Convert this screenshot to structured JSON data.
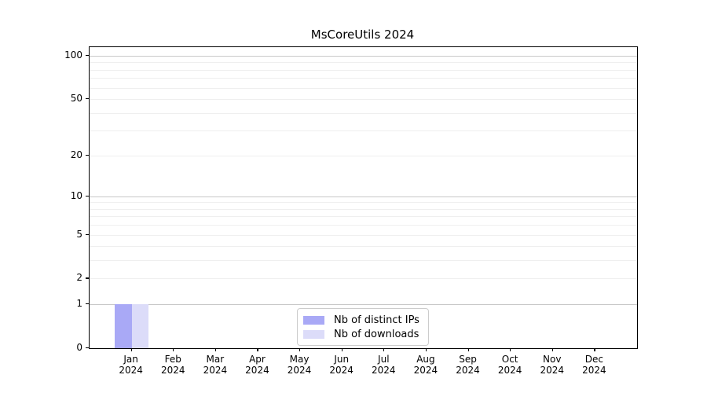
{
  "figure": {
    "background": "#ffffff"
  },
  "chart_data": {
    "type": "bar",
    "title": "MsCoreUtils 2024",
    "x_axis": {
      "months": [
        "Jan",
        "Feb",
        "Mar",
        "Apr",
        "May",
        "Jun",
        "Jul",
        "Aug",
        "Sep",
        "Oct",
        "Nov",
        "Dec"
      ],
      "year": "2024"
    },
    "y_axis": {
      "scale": "log1p",
      "tick_values": [
        0,
        1,
        2,
        5,
        10,
        20,
        50,
        100
      ],
      "major_grid_values": [
        1,
        10,
        100
      ],
      "minor_grid_values": [
        2,
        3,
        4,
        5,
        6,
        7,
        8,
        9,
        20,
        30,
        40,
        50,
        60,
        70,
        80,
        90
      ],
      "ylim": [
        0,
        100
      ]
    },
    "series": [
      {
        "name": "Nb of distinct IPs",
        "color": "#a9a9f6",
        "values": [
          1,
          0,
          0,
          0,
          0,
          0,
          0,
          0,
          0,
          0,
          0,
          0
        ]
      },
      {
        "name": "Nb of downloads",
        "color": "#dcdcf9",
        "values": [
          1,
          0,
          0,
          0,
          0,
          0,
          0,
          0,
          0,
          0,
          0,
          0
        ]
      }
    ],
    "legend": {
      "position": "lower center",
      "entries": [
        "Nb of distinct IPs",
        "Nb of downloads"
      ]
    },
    "colors": {
      "major_grid": "#c8c8c8",
      "minor_grid": "#efefef",
      "spine": "#000000",
      "text": "#000000"
    }
  }
}
